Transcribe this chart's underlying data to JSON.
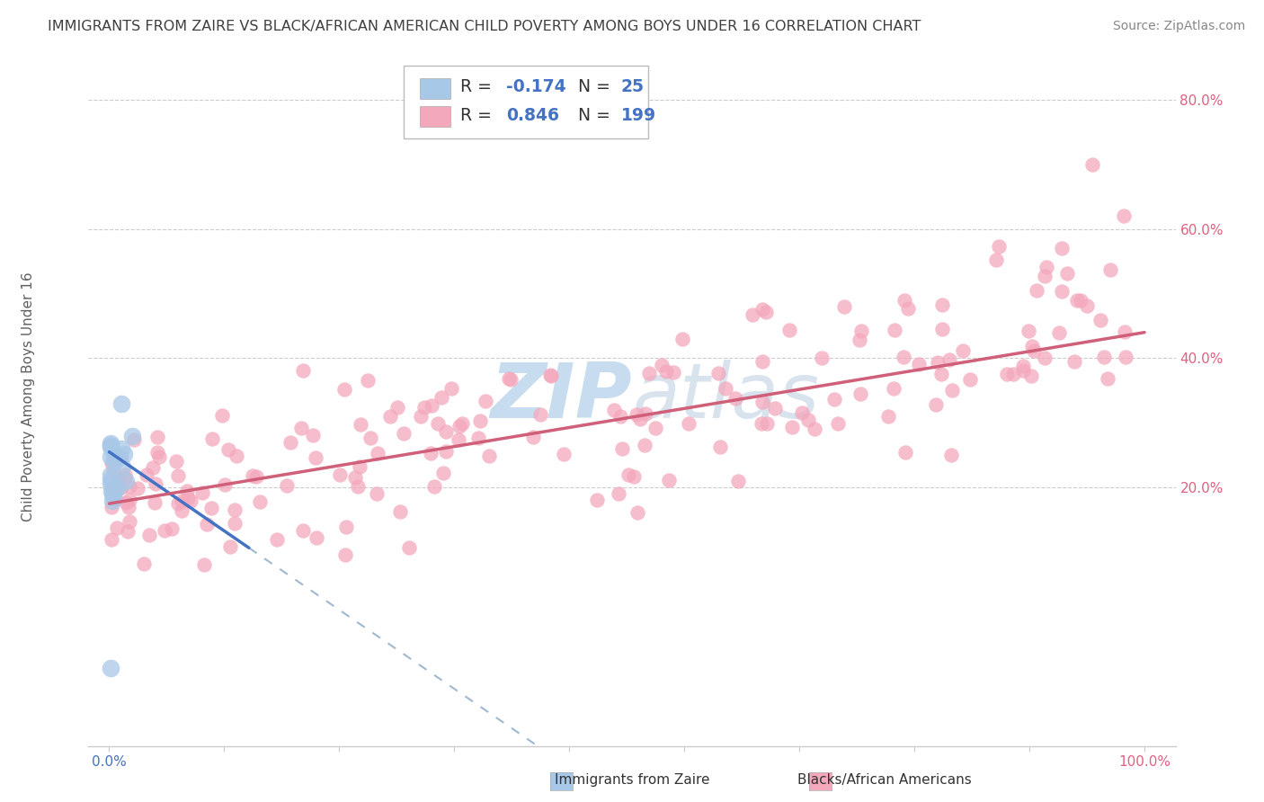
{
  "title": "IMMIGRANTS FROM ZAIRE VS BLACK/AFRICAN AMERICAN CHILD POVERTY AMONG BOYS UNDER 16 CORRELATION CHART",
  "source": "Source: ZipAtlas.com",
  "ylabel": "Child Poverty Among Boys Under 16",
  "color_blue": "#A8C8E8",
  "color_pink": "#F4A8BC",
  "line_blue": "#4472C4",
  "line_pink": "#D0607A",
  "line_gray_dash": "#A0B8D0",
  "background": "#FFFFFF",
  "title_color": "#404040",
  "source_color": "#888888",
  "axis_label_color": "#606060",
  "tick_color_x_left": "#4472C4",
  "tick_color_x_right": "#E06080",
  "tick_color_y_right": "#E06080",
  "grid_color": "#CCCCCC",
  "watermark_color": "#E0E8F0",
  "legend_num_color": "#4472C4",
  "xlim_min": -0.02,
  "xlim_max": 1.03,
  "ylim_min": -0.2,
  "ylim_max": 0.88,
  "y_ticks": [
    0.2,
    0.4,
    0.6,
    0.8
  ],
  "y_tick_labels": [
    "20.0%",
    "40.0%",
    "60.0%",
    "80.0%"
  ],
  "x_tick_left_label": "0.0%",
  "x_tick_right_label": "100.0%"
}
